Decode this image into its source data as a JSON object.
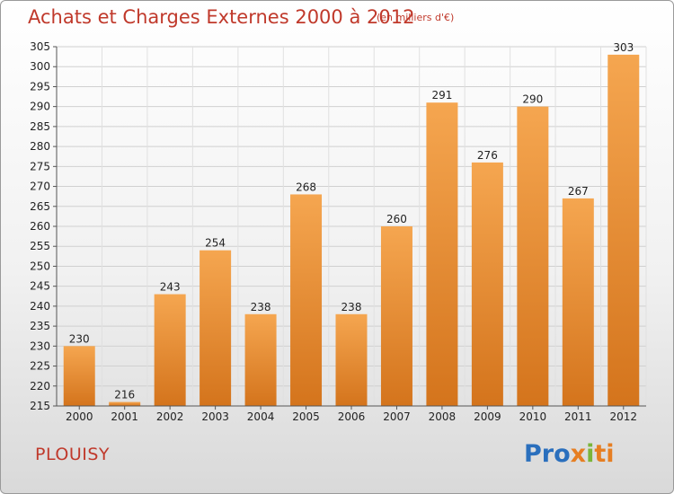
{
  "chart_data": {
    "type": "bar",
    "title": "Achats et Charges Externes 2000 à 2012",
    "subtitle": "(en milliers d'€)",
    "categories": [
      "2000",
      "2001",
      "2002",
      "2003",
      "2004",
      "2005",
      "2006",
      "2007",
      "2008",
      "2009",
      "2010",
      "2011",
      "2012"
    ],
    "values": [
      230,
      216,
      243,
      254,
      238,
      268,
      238,
      260,
      291,
      276,
      290,
      267,
      303
    ],
    "ylim": [
      215,
      305
    ],
    "yticks": [
      215,
      220,
      225,
      230,
      235,
      240,
      245,
      250,
      255,
      260,
      265,
      270,
      275,
      280,
      285,
      290,
      295,
      300,
      305
    ],
    "grid": true,
    "bar_color_top": "#f5a650",
    "bar_color_bottom": "#d4741c"
  },
  "commune": "PLOUISY",
  "brand": {
    "p1": "Pro",
    "p2": "x",
    "p3": "i",
    "p4": "ti"
  }
}
